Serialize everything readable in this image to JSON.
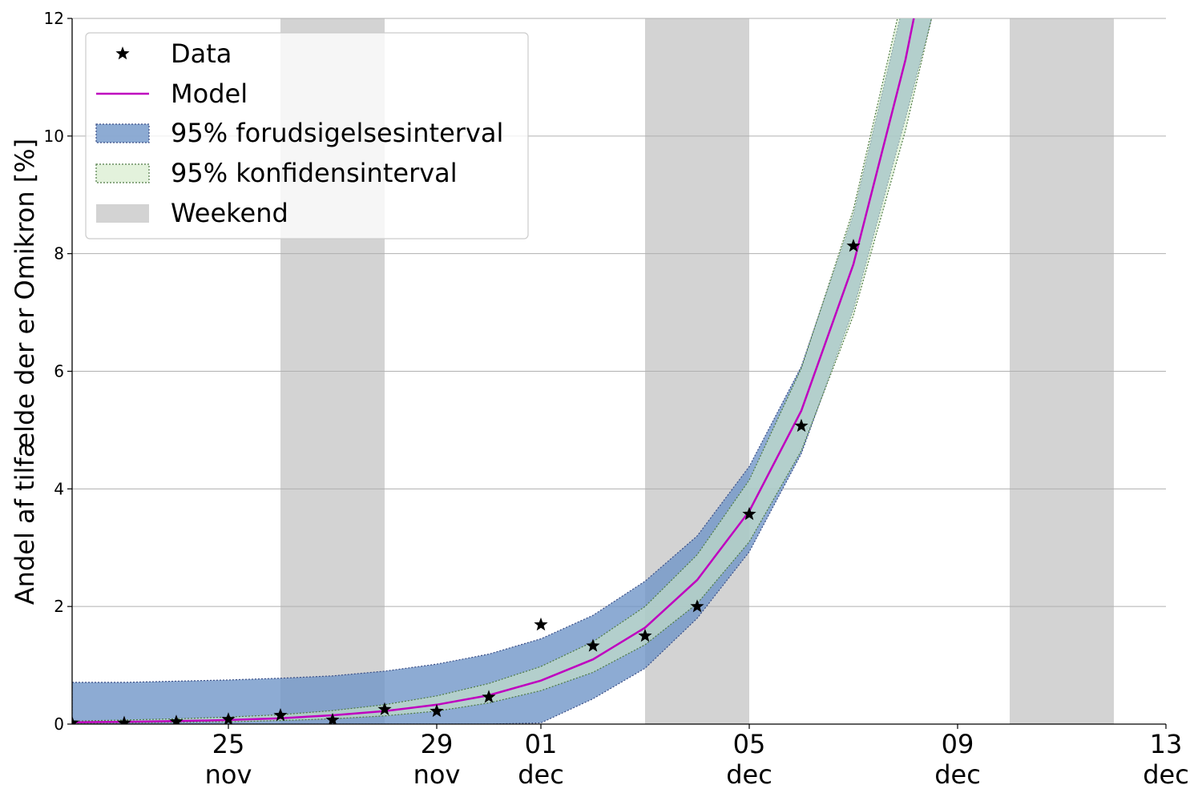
{
  "chart_data": {
    "type": "line",
    "title": "",
    "xlabel": "",
    "ylabel": "Andel af tilfælde der er Omikron [%]",
    "x_type": "date",
    "x_range": [
      "2021-11-22",
      "2021-12-13"
    ],
    "ylim": [
      0,
      12
    ],
    "yticks": [
      0,
      2,
      4,
      6,
      8,
      10,
      12
    ],
    "xticks": [
      {
        "date": "2021-11-25",
        "day": "25",
        "month": "nov"
      },
      {
        "date": "2021-11-29",
        "day": "29",
        "month": "nov"
      },
      {
        "date": "2021-12-01",
        "day": "01",
        "month": "dec"
      },
      {
        "date": "2021-12-05",
        "day": "05",
        "month": "dec"
      },
      {
        "date": "2021-12-09",
        "day": "09",
        "month": "dec"
      },
      {
        "date": "2021-12-13",
        "day": "13",
        "month": "dec"
      }
    ],
    "grid": "y",
    "legend_position": "top-left",
    "legend": [
      {
        "key": "data",
        "label": "Data"
      },
      {
        "key": "model",
        "label": "Model"
      },
      {
        "key": "pi",
        "label": "95% forudsigelsesinterval"
      },
      {
        "key": "ci",
        "label": "95% konfidensinterval"
      },
      {
        "key": "weekend",
        "label": "Weekend"
      }
    ],
    "weekends": [
      {
        "start": "2021-11-26",
        "end": "2021-11-28"
      },
      {
        "start": "2021-12-03",
        "end": "2021-12-05"
      },
      {
        "start": "2021-12-10",
        "end": "2021-12-12"
      }
    ],
    "series": [
      {
        "name": "Data",
        "style": "markers",
        "points": [
          {
            "x": "2021-11-22",
            "y": 0.02
          },
          {
            "x": "2021-11-23",
            "y": 0.02
          },
          {
            "x": "2021-11-24",
            "y": 0.04
          },
          {
            "x": "2021-11-25",
            "y": 0.08
          },
          {
            "x": "2021-11-26",
            "y": 0.15
          },
          {
            "x": "2021-11-27",
            "y": 0.07
          },
          {
            "x": "2021-11-28",
            "y": 0.25
          },
          {
            "x": "2021-11-29",
            "y": 0.22
          },
          {
            "x": "2021-11-30",
            "y": 0.46
          },
          {
            "x": "2021-12-01",
            "y": 1.69
          },
          {
            "x": "2021-12-02",
            "y": 1.33
          },
          {
            "x": "2021-12-03",
            "y": 1.5
          },
          {
            "x": "2021-12-04",
            "y": 2.0
          },
          {
            "x": "2021-12-05",
            "y": 3.57
          },
          {
            "x": "2021-12-06",
            "y": 5.07
          },
          {
            "x": "2021-12-07",
            "y": 8.13
          }
        ]
      },
      {
        "name": "Model",
        "style": "line",
        "points": [
          {
            "x": "2021-11-22",
            "y": 0.03
          },
          {
            "x": "2021-11-23",
            "y": 0.04
          },
          {
            "x": "2021-11-24",
            "y": 0.05
          },
          {
            "x": "2021-11-25",
            "y": 0.07
          },
          {
            "x": "2021-11-26",
            "y": 0.1
          },
          {
            "x": "2021-11-27",
            "y": 0.15
          },
          {
            "x": "2021-11-28",
            "y": 0.22
          },
          {
            "x": "2021-11-29",
            "y": 0.33
          },
          {
            "x": "2021-11-30",
            "y": 0.49
          },
          {
            "x": "2021-12-01",
            "y": 0.74
          },
          {
            "x": "2021-12-02",
            "y": 1.1
          },
          {
            "x": "2021-12-03",
            "y": 1.64
          },
          {
            "x": "2021-12-04",
            "y": 2.45
          },
          {
            "x": "2021-12-05",
            "y": 3.62
          },
          {
            "x": "2021-12-06",
            "y": 5.33
          },
          {
            "x": "2021-12-07",
            "y": 7.82
          },
          {
            "x": "2021-12-08",
            "y": 11.3
          },
          {
            "x": "2021-12-08.5",
            "y": 13.5
          }
        ]
      }
    ],
    "intervals": [
      {
        "name": "95% forudsigelsesinterval",
        "points": [
          {
            "x": "2021-11-22",
            "lo": 0,
            "hi": 0.71
          },
          {
            "x": "2021-11-23",
            "lo": 0,
            "hi": 0.71
          },
          {
            "x": "2021-11-24",
            "lo": 0,
            "hi": 0.73
          },
          {
            "x": "2021-11-25",
            "lo": 0,
            "hi": 0.75
          },
          {
            "x": "2021-11-26",
            "lo": 0,
            "hi": 0.78
          },
          {
            "x": "2021-11-27",
            "lo": 0,
            "hi": 0.82
          },
          {
            "x": "2021-11-28",
            "lo": 0,
            "hi": 0.9
          },
          {
            "x": "2021-11-29",
            "lo": 0,
            "hi": 1.02
          },
          {
            "x": "2021-11-30",
            "lo": 0,
            "hi": 1.19
          },
          {
            "x": "2021-12-01",
            "lo": 0.02,
            "hi": 1.45
          },
          {
            "x": "2021-12-02",
            "lo": 0.43,
            "hi": 1.85
          },
          {
            "x": "2021-12-03",
            "lo": 0.95,
            "hi": 2.43
          },
          {
            "x": "2021-12-04",
            "lo": 1.8,
            "hi": 3.2
          },
          {
            "x": "2021-12-05",
            "lo": 2.93,
            "hi": 4.38
          },
          {
            "x": "2021-12-06",
            "lo": 4.6,
            "hi": 6.08
          },
          {
            "x": "2021-12-07",
            "lo": 7.05,
            "hi": 8.67
          },
          {
            "x": "2021-12-08",
            "lo": 10.3,
            "hi": 12.4
          },
          {
            "x": "2021-12-08.5",
            "lo": 12.0,
            "hi": 14.5
          }
        ]
      },
      {
        "name": "95% konfidensinterval",
        "points": [
          {
            "x": "2021-11-22",
            "lo": 0.01,
            "hi": 0.05
          },
          {
            "x": "2021-11-23",
            "lo": 0.02,
            "hi": 0.07
          },
          {
            "x": "2021-11-24",
            "lo": 0.03,
            "hi": 0.09
          },
          {
            "x": "2021-11-25",
            "lo": 0.04,
            "hi": 0.12
          },
          {
            "x": "2021-11-26",
            "lo": 0.06,
            "hi": 0.16
          },
          {
            "x": "2021-11-27",
            "lo": 0.09,
            "hi": 0.23
          },
          {
            "x": "2021-11-28",
            "lo": 0.14,
            "hi": 0.33
          },
          {
            "x": "2021-11-29",
            "lo": 0.22,
            "hi": 0.48
          },
          {
            "x": "2021-11-30",
            "lo": 0.36,
            "hi": 0.69
          },
          {
            "x": "2021-12-01",
            "lo": 0.57,
            "hi": 0.98
          },
          {
            "x": "2021-12-02",
            "lo": 0.88,
            "hi": 1.4
          },
          {
            "x": "2021-12-03",
            "lo": 1.35,
            "hi": 2.0
          },
          {
            "x": "2021-12-04",
            "lo": 2.05,
            "hi": 2.88
          },
          {
            "x": "2021-12-05",
            "lo": 3.1,
            "hi": 4.15
          },
          {
            "x": "2021-12-06",
            "lo": 4.65,
            "hi": 6.05
          },
          {
            "x": "2021-12-07",
            "lo": 6.95,
            "hi": 8.75
          },
          {
            "x": "2021-12-08",
            "lo": 10.1,
            "hi": 12.6
          },
          {
            "x": "2021-12-08.5",
            "lo": 12.0,
            "hi": 14.5
          }
        ]
      }
    ],
    "colors": {
      "data": "#000000",
      "model": "#bf00bf",
      "prediction_interval": "#7196c8",
      "confidence_interval": "#c7e0bf",
      "weekend": "#d3d3d3",
      "grid": "#b0b0b0"
    }
  }
}
